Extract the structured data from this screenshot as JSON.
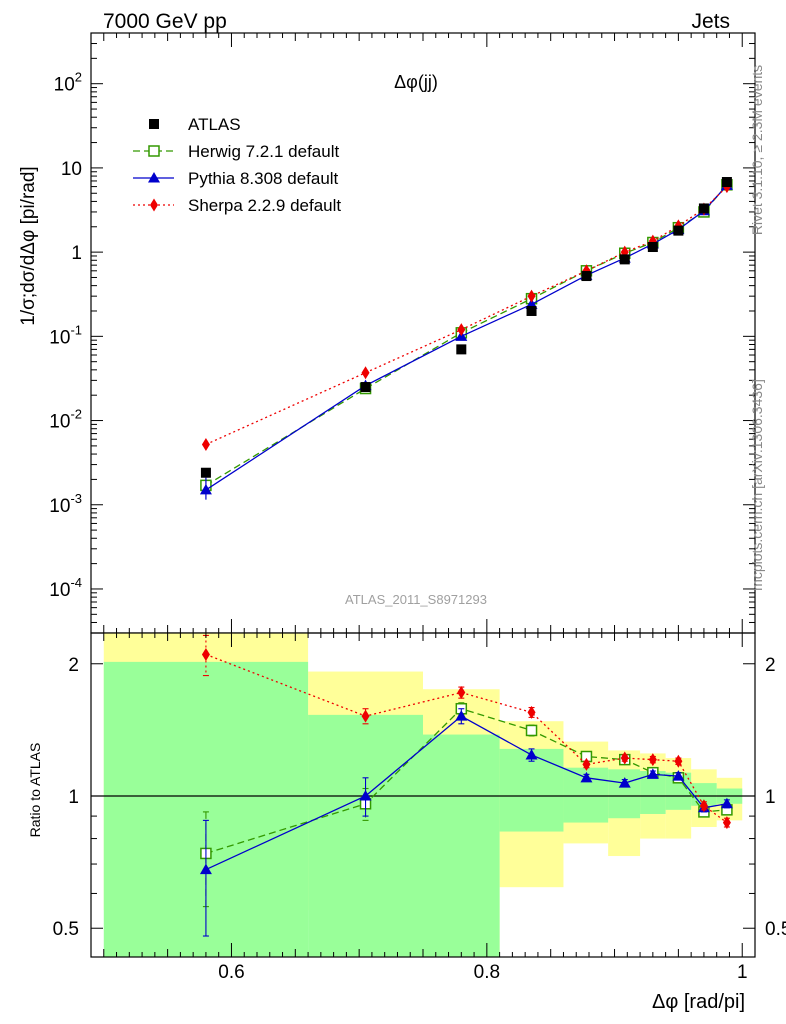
{
  "chart_data": {
    "type": "line",
    "header_left": "7000 GeV pp",
    "header_right": "Jets",
    "title": "Δφ(jj)",
    "side_label_top": "Rivet 3.1.10, ≥ 2.3M events",
    "side_label_bottom": "mcplots.cern.ch [arXiv:1306.3436]",
    "watermark": "ATLAS_2011_S8971293",
    "xlabel": "Δφ [rad/pi]",
    "ylabel": "1/σ;dσ/dΔφ [pi/rad]",
    "ratio_ylabel": "Ratio to ATLAS",
    "xlim": [
      0.49,
      1.01
    ],
    "ylim_main": [
      3e-05,
      400
    ],
    "ylim_ratio": [
      0.43,
      2.35
    ],
    "x_ticks": [
      "0.6",
      "0.8",
      "1"
    ],
    "main_y_ticks": [
      {
        "base": "10",
        "exp": "-4"
      },
      {
        "base": "10",
        "exp": "-3"
      },
      {
        "base": "10",
        "exp": "-2"
      },
      {
        "base": "10",
        "exp": "-1"
      },
      {
        "base": "1",
        "exp": ""
      },
      {
        "base": "10",
        "exp": ""
      },
      {
        "base": "10",
        "exp": "2"
      }
    ],
    "ratio_y_ticks": [
      "0.5",
      "1",
      "2"
    ],
    "x": [
      0.58,
      0.705,
      0.78,
      0.835,
      0.878,
      0.908,
      0.93,
      0.95,
      0.97,
      0.988
    ],
    "bin_edges": [
      0.5,
      0.66,
      0.75,
      0.81,
      0.86,
      0.895,
      0.92,
      0.94,
      0.96,
      0.98,
      1.0
    ],
    "band_inner": [
      [
        0.43,
        2.02
      ],
      [
        0.43,
        1.53
      ],
      [
        0.43,
        1.38
      ],
      [
        0.83,
        1.28
      ],
      [
        0.87,
        1.16
      ],
      [
        0.89,
        1.15
      ],
      [
        0.91,
        1.14
      ],
      [
        0.93,
        1.13
      ],
      [
        0.95,
        1.07
      ],
      [
        0.96,
        1.04
      ]
    ],
    "band_outer": [
      [
        0.55,
        2.35
      ],
      [
        0.55,
        1.92
      ],
      [
        0.43,
        1.75
      ],
      [
        0.62,
        1.48
      ],
      [
        0.78,
        1.33
      ],
      [
        0.73,
        1.27
      ],
      [
        0.8,
        1.25
      ],
      [
        0.8,
        1.22
      ],
      [
        0.85,
        1.15
      ],
      [
        0.88,
        1.1
      ]
    ],
    "series": [
      {
        "name": "ATLAS",
        "color": "#000000",
        "marker": "square-filled",
        "values": [
          0.0024,
          0.025,
          0.07,
          0.2,
          0.52,
          0.82,
          1.15,
          1.8,
          3.3,
          6.8
        ],
        "ratio": [
          1,
          1,
          1,
          1,
          1,
          1,
          1,
          1,
          1,
          1
        ]
      },
      {
        "name": "Herwig 7.2.1 default",
        "color": "#339900",
        "marker": "square-open",
        "dash": "7,4",
        "values": [
          0.0017,
          0.024,
          0.11,
          0.28,
          0.6,
          0.97,
          1.3,
          1.95,
          3.0,
          6.3
        ],
        "ratio": [
          0.74,
          0.96,
          1.58,
          1.41,
          1.23,
          1.21,
          1.13,
          1.1,
          0.92,
          0.93
        ],
        "ratio_err": [
          0.18,
          0.08,
          0.05,
          0.04,
          0.02,
          0.02,
          0.02,
          0.02,
          0.02,
          0.02
        ]
      },
      {
        "name": "Pythia 8.308 default",
        "color": "#0000cc",
        "marker": "triangle-filled",
        "values": [
          0.0015,
          0.026,
          0.1,
          0.24,
          0.53,
          0.85,
          1.25,
          1.85,
          3.1,
          6.2
        ],
        "ratio": [
          0.68,
          1.0,
          1.52,
          1.24,
          1.1,
          1.07,
          1.12,
          1.11,
          0.94,
          0.96
        ],
        "ratio_err": [
          0.2,
          0.1,
          0.06,
          0.04,
          0.02,
          0.02,
          0.02,
          0.02,
          0.02,
          0.02
        ]
      },
      {
        "name": "Sherpa 2.2.9 default",
        "color": "#ee0000",
        "marker": "diamond-filled",
        "dash": "2,3",
        "values": [
          0.0052,
          0.037,
          0.12,
          0.3,
          0.6,
          1.0,
          1.35,
          2.05,
          3.25,
          6.0
        ],
        "ratio": [
          2.1,
          1.52,
          1.72,
          1.55,
          1.18,
          1.22,
          1.21,
          1.2,
          0.95,
          0.87
        ],
        "ratio_err": [
          0.22,
          0.06,
          0.05,
          0.04,
          0.02,
          0.02,
          0.02,
          0.02,
          0.02,
          0.02
        ]
      }
    ]
  }
}
